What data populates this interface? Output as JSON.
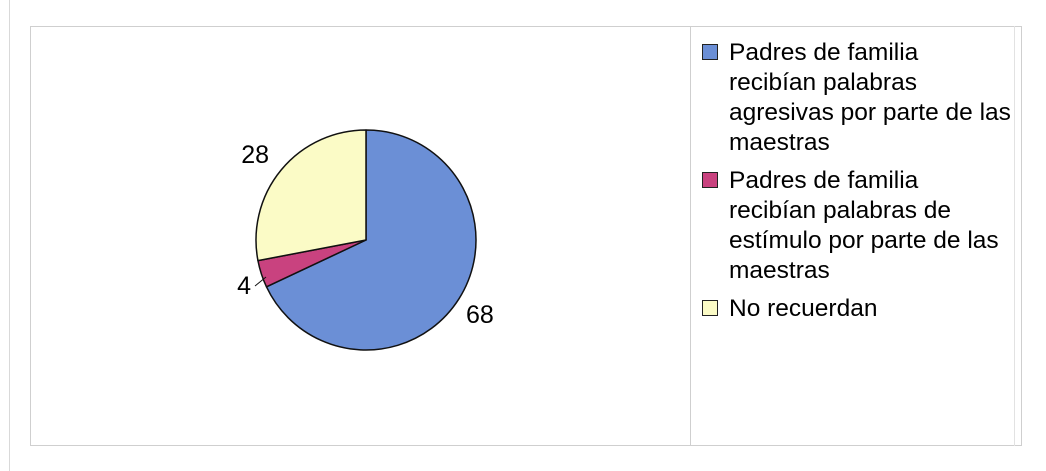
{
  "chart_data": {
    "type": "pie",
    "title": "",
    "start_angle_deg": 0,
    "direction": "clockwise",
    "slices": [
      {
        "label": "Padres de familia recibían palabras agresivas por parte de las maestras",
        "value": 68,
        "display": "68",
        "color": "#6b8fd6"
      },
      {
        "label": "Padres de familia recibían palabras de estímulo por parte de las maestras",
        "value": 4,
        "display": "4",
        "color": "#c9427f"
      },
      {
        "label": "No recuerdan",
        "value": 28,
        "display": "28",
        "color": "#fbfbc6"
      }
    ],
    "legend": {
      "placement": "right",
      "entries": [
        "Padres de familia recibían palabras agresivas por parte de las maestras",
        "Padres de familia recibían palabras de estímulo por parte de las maestras",
        "No recuerdan"
      ]
    }
  }
}
